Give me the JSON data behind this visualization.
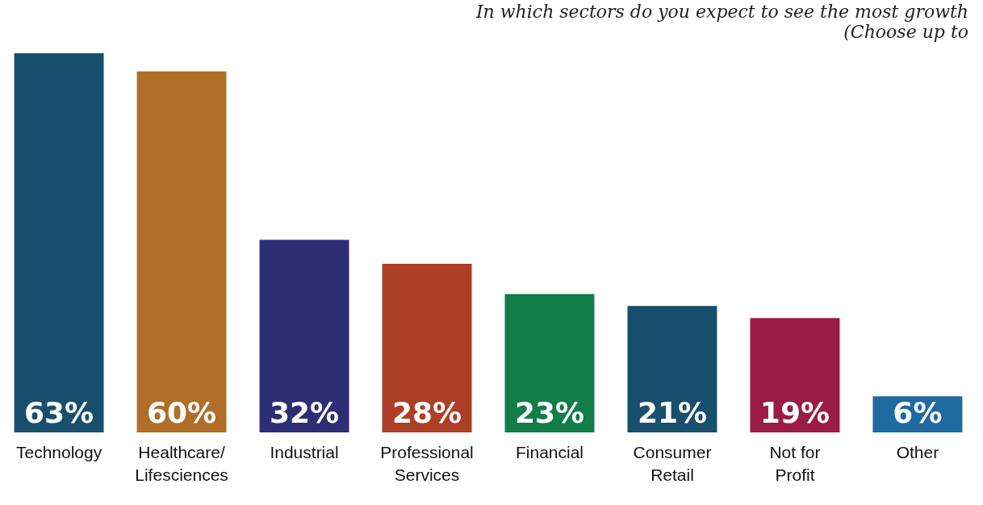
{
  "chart_data": {
    "type": "bar",
    "title": "In which sectors do you expect to see the most growth",
    "subtitle": "(Choose up to",
    "categories": [
      "Technology",
      "Healthcare/\nLifesciences",
      "Industrial",
      "Professional\nServices",
      "Financial",
      "Consumer\nRetail",
      "Not for\nProfit",
      "Other"
    ],
    "values": [
      63,
      60,
      32,
      28,
      23,
      21,
      19,
      6
    ],
    "colors": [
      "#174f6d",
      "#b06e28",
      "#2e2e75",
      "#ac3f26",
      "#117d48",
      "#174f6d",
      "#9a1b45",
      "#1f6aa0"
    ],
    "value_labels": [
      "63%",
      "60%",
      "32%",
      "28%",
      "23%",
      "21%",
      "19%",
      "6%"
    ]
  }
}
